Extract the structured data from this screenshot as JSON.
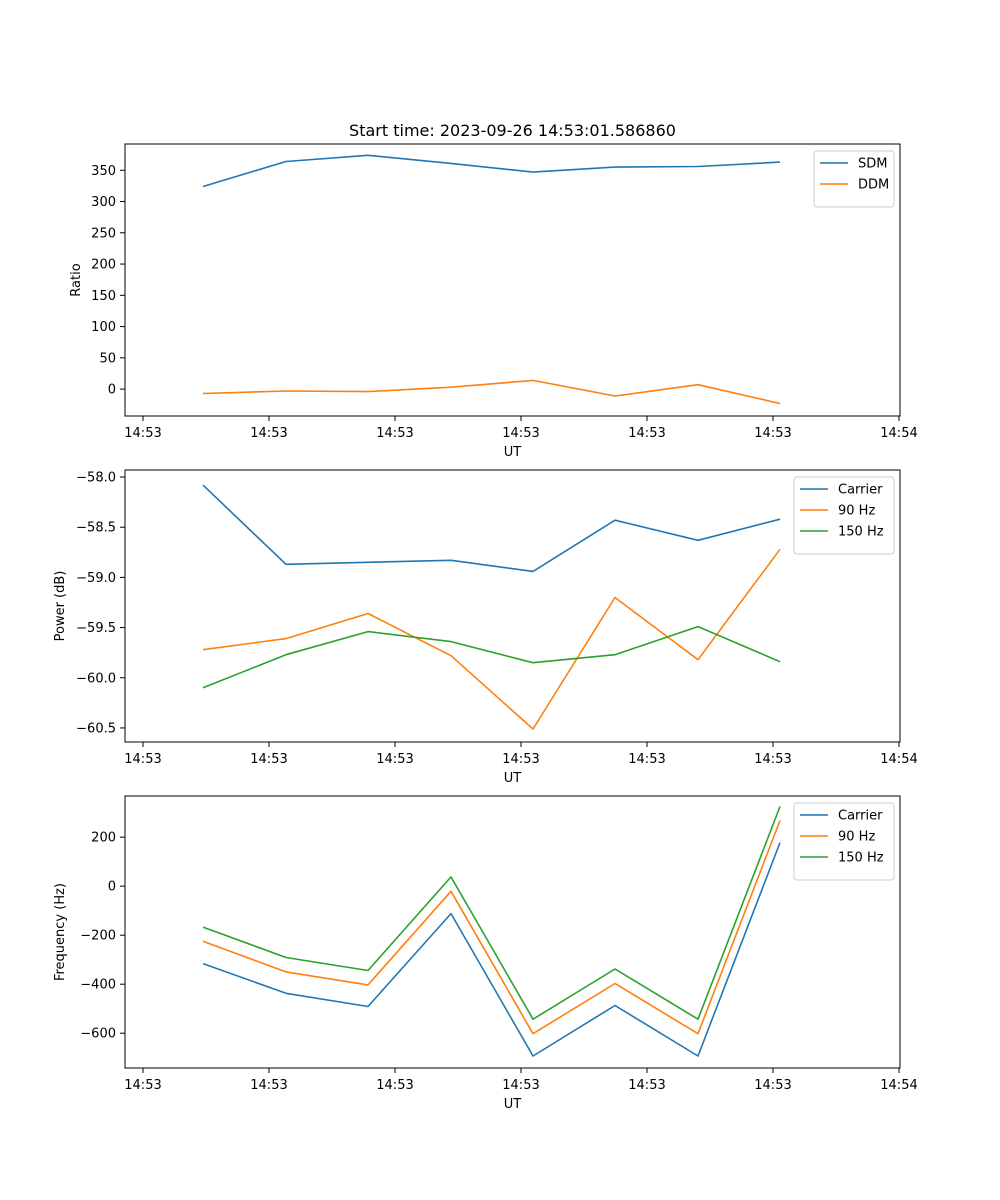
{
  "colors": {
    "blue": "#1f77b4",
    "orange": "#ff7f0e",
    "green": "#2ca02c"
  },
  "chart_data": [
    {
      "type": "line",
      "title": "Start time: 2023-09-26 14:53:01.586860",
      "xlabel": "UT",
      "ylabel": "Ratio",
      "x_tick_labels": [
        "14:53",
        "14:53",
        "14:53",
        "14:53",
        "14:53",
        "14:53",
        "14:54"
      ],
      "y_ticks": [
        0,
        50,
        100,
        150,
        200,
        250,
        300,
        350
      ],
      "y_tick_labels": [
        "0",
        "50",
        "100",
        "150",
        "200",
        "250",
        "300",
        "350"
      ],
      "ylim": [
        -43,
        392
      ],
      "legend_position": "top-right",
      "series": [
        {
          "name": "SDM",
          "color": "#1f77b4",
          "values": [
            324,
            364,
            374,
            361,
            347,
            355,
            356,
            363
          ]
        },
        {
          "name": "DDM",
          "color": "#ff7f0e",
          "values": [
            -7,
            -3,
            -4,
            3,
            14,
            -11,
            7,
            -23
          ]
        }
      ]
    },
    {
      "type": "line",
      "title": "",
      "xlabel": "UT",
      "ylabel": "Power (dB)",
      "x_tick_labels": [
        "14:53",
        "14:53",
        "14:53",
        "14:53",
        "14:53",
        "14:53",
        "14:54"
      ],
      "y_ticks": [
        -58.0,
        -58.5,
        -59.0,
        -59.5,
        -60.0,
        -60.5
      ],
      "y_tick_labels": [
        "−58.0",
        "−58.5",
        "−59.0",
        "−59.5",
        "−60.0",
        "−60.5"
      ],
      "ylim": [
        -60.64,
        -57.93
      ],
      "legend_position": "top-right",
      "series": [
        {
          "name": "Carrier",
          "color": "#1f77b4",
          "values": [
            -58.08,
            -58.87,
            -58.85,
            -58.83,
            -58.94,
            -58.43,
            -58.63,
            -58.42
          ]
        },
        {
          "name": "90 Hz",
          "color": "#ff7f0e",
          "values": [
            -59.72,
            -59.61,
            -59.36,
            -59.78,
            -60.51,
            -59.2,
            -59.82,
            -58.72
          ]
        },
        {
          "name": "150 Hz",
          "color": "#2ca02c",
          "values": [
            -60.1,
            -59.77,
            -59.54,
            -59.64,
            -59.85,
            -59.77,
            -59.49,
            -59.84
          ]
        }
      ]
    },
    {
      "type": "line",
      "title": "",
      "xlabel": "UT",
      "ylabel": "Frequency (Hz)",
      "x_tick_labels": [
        "14:53",
        "14:53",
        "14:53",
        "14:53",
        "14:53",
        "14:53",
        "14:54"
      ],
      "y_ticks": [
        200,
        0,
        -200,
        -400,
        -600
      ],
      "y_tick_labels": [
        "200",
        "0",
        "−200",
        "−400",
        "−600"
      ],
      "ylim": [
        -742,
        368
      ],
      "legend_position": "top-right",
      "series": [
        {
          "name": "Carrier",
          "color": "#1f77b4",
          "values": [
            -316,
            -437,
            -491,
            -112,
            -693,
            -487,
            -693,
            178
          ]
        },
        {
          "name": "90 Hz",
          "color": "#ff7f0e",
          "values": [
            -225,
            -350,
            -403,
            -21,
            -602,
            -397,
            -602,
            268
          ]
        },
        {
          "name": "150 Hz",
          "color": "#2ca02c",
          "values": [
            -167,
            -291,
            -344,
            38,
            -543,
            -338,
            -543,
            325
          ]
        }
      ]
    }
  ]
}
